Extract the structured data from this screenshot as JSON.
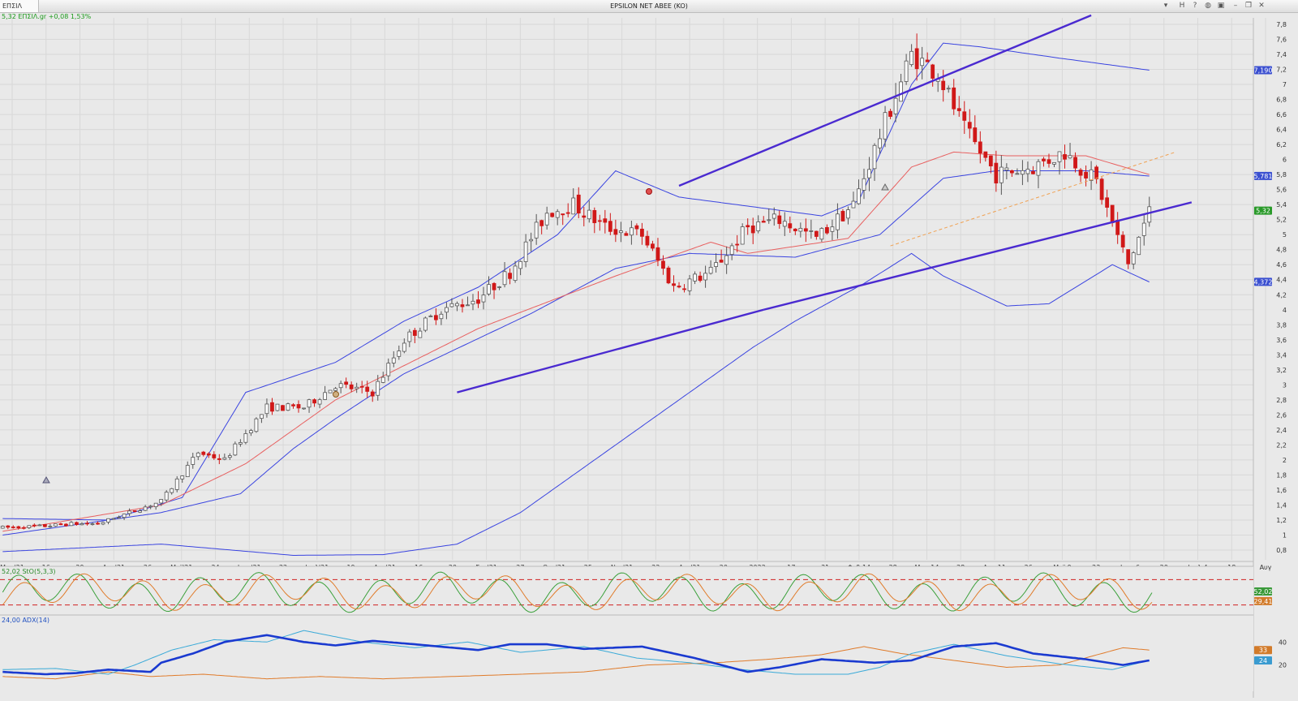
{
  "window": {
    "symbol_tab": "ΕΠΣΙΛ",
    "title": "EPSILON NET ABEE (KO)",
    "btn_h": "H"
  },
  "quote": {
    "text": "5,32 ΕΠΣΙΛ.gr +0,08 1,53%"
  },
  "chart_data": [
    {
      "type": "candlestick",
      "symbol": "ΕΠΣΙΛ",
      "price_range": [
        0.8,
        7.8
      ],
      "price_ticks": [
        "7,8",
        "7,6",
        "7,4",
        "7,2",
        "7",
        "6,8",
        "6,6",
        "6,4",
        "6,2",
        "6",
        "5,8",
        "5,6",
        "5,4",
        "5,2",
        "5",
        "4,8",
        "4,6",
        "4,4",
        "4,2",
        "4",
        "3,8",
        "3,6",
        "3,4",
        "3,2",
        "3",
        "2,8",
        "2,6",
        "2,4",
        "2,2",
        "2",
        "1,8",
        "1,6",
        "1,4",
        "1,2",
        "1",
        "0,8"
      ],
      "x_labels": [
        "Μαρ'21",
        "16",
        "29",
        "Απρ'21",
        "26",
        "Μαϊ'21",
        "24",
        "Ιουν'21",
        "22",
        "Ιουλ'21",
        "19",
        "Αυγ'21",
        "16",
        "30",
        "Σεπ'21",
        "27",
        "Οκτ'21",
        "25",
        "Νοε'21",
        "22",
        "Δεκ'21",
        "20",
        "2022",
        "17",
        "31",
        "Φεβ 14",
        "28",
        "Μαρ 14",
        "28",
        "Απρ 11",
        "26",
        "Μαϊ 9",
        "23",
        "Ιουν 6",
        "20",
        "Ιουλ 4",
        "18",
        "Αυγ"
      ],
      "value_flags": [
        {
          "label": "7,190",
          "color": "#3a4fd0"
        },
        {
          "label": "5,781",
          "color": "#3a4fd0"
        },
        {
          "label": "5,32",
          "color": "#2a9a2a"
        },
        {
          "label": "4,372",
          "color": "#3a4fd0"
        }
      ],
      "price_path": [
        [
          0,
          1.1
        ],
        [
          8,
          1.12
        ],
        [
          13,
          1.15
        ],
        [
          18,
          1.15
        ],
        [
          24,
          1.3
        ],
        [
          30,
          1.45
        ],
        [
          37,
          2.1
        ],
        [
          42,
          2.0
        ],
        [
          50,
          2.7
        ],
        [
          57,
          2.7
        ],
        [
          63,
          3.0
        ],
        [
          70,
          2.9
        ],
        [
          76,
          3.6
        ],
        [
          83,
          4.0
        ],
        [
          90,
          4.15
        ],
        [
          96,
          4.5
        ],
        [
          103,
          5.3
        ],
        [
          108,
          5.4
        ],
        [
          114,
          5.1
        ],
        [
          121,
          5.0
        ],
        [
          127,
          4.3
        ],
        [
          134,
          4.5
        ],
        [
          141,
          5.1
        ],
        [
          147,
          5.2
        ],
        [
          154,
          4.95
        ],
        [
          161,
          5.4
        ],
        [
          167,
          6.5
        ],
        [
          172,
          7.4
        ],
        [
          177,
          7.15
        ],
        [
          182,
          6.4
        ],
        [
          188,
          5.8
        ],
        [
          195,
          5.9
        ],
        [
          201,
          6.1
        ],
        [
          207,
          5.7
        ],
        [
          213,
          4.6
        ],
        [
          217,
          5.32
        ]
      ],
      "bollinger_upper": [
        [
          0,
          1.22
        ],
        [
          20,
          1.2
        ],
        [
          34,
          1.5
        ],
        [
          46,
          2.9
        ],
        [
          63,
          3.3
        ],
        [
          76,
          3.85
        ],
        [
          90,
          4.3
        ],
        [
          105,
          5.0
        ],
        [
          116,
          5.85
        ],
        [
          128,
          5.5
        ],
        [
          141,
          5.38
        ],
        [
          155,
          5.25
        ],
        [
          162,
          5.45
        ],
        [
          172,
          7.0
        ],
        [
          178,
          7.55
        ],
        [
          185,
          7.5
        ],
        [
          200,
          7.35
        ],
        [
          217,
          7.19
        ]
      ],
      "bollinger_middle": [
        [
          0,
          1.0
        ],
        [
          30,
          1.3
        ],
        [
          45,
          1.55
        ],
        [
          55,
          2.15
        ],
        [
          63,
          2.55
        ],
        [
          76,
          3.15
        ],
        [
          100,
          3.95
        ],
        [
          116,
          4.55
        ],
        [
          130,
          4.75
        ],
        [
          150,
          4.7
        ],
        [
          166,
          5.0
        ],
        [
          178,
          5.75
        ],
        [
          188,
          5.85
        ],
        [
          205,
          5.85
        ],
        [
          217,
          5.78
        ]
      ],
      "bollinger_lower": [
        [
          0,
          0.78
        ],
        [
          30,
          0.88
        ],
        [
          55,
          0.73
        ],
        [
          72,
          0.74
        ],
        [
          86,
          0.88
        ],
        [
          98,
          1.3
        ],
        [
          116,
          2.2
        ],
        [
          130,
          2.9
        ],
        [
          142,
          3.5
        ],
        [
          150,
          3.85
        ],
        [
          163,
          4.35
        ],
        [
          172,
          4.75
        ],
        [
          178,
          4.45
        ],
        [
          190,
          4.05
        ],
        [
          198,
          4.08
        ],
        [
          210,
          4.6
        ],
        [
          217,
          4.37
        ]
      ],
      "moving_average": [
        [
          0,
          1.05
        ],
        [
          30,
          1.4
        ],
        [
          46,
          1.95
        ],
        [
          63,
          2.8
        ],
        [
          90,
          3.75
        ],
        [
          116,
          4.45
        ],
        [
          134,
          4.9
        ],
        [
          141,
          4.75
        ],
        [
          160,
          4.95
        ],
        [
          172,
          5.9
        ],
        [
          180,
          6.1
        ],
        [
          190,
          6.05
        ],
        [
          205,
          6.05
        ],
        [
          217,
          5.8
        ]
      ],
      "trendlines": [
        {
          "from": [
            86,
            2.9
          ],
          "to": [
            144,
            4.0
          ]
        },
        {
          "from": [
            144,
            4.0
          ],
          "to": [
            225,
            5.43
          ]
        },
        {
          "from": [
            128,
            5.65
          ],
          "to": [
            206,
            7.92
          ]
        }
      ],
      "dashed_trendline": {
        "from": [
          168,
          4.85
        ],
        "to": [
          222,
          6.1
        ]
      }
    },
    {
      "type": "line",
      "title": "52,02 StO(5,3,3)",
      "levels": [
        80,
        20
      ],
      "value_flags": [
        {
          "label": "52,02",
          "color": "#3a9a3a"
        },
        {
          "label": "29,41",
          "color": "#d27b2a"
        }
      ],
      "series": [
        {
          "color": "#3aa03a"
        },
        {
          "color": "#e07b2a"
        }
      ]
    },
    {
      "type": "line",
      "title": "24,00 ADX(14)",
      "y_ticks": [
        "40",
        "20"
      ],
      "value_flags": [
        {
          "label": "33",
          "color": "#d27b2a"
        },
        {
          "label": "24",
          "color": "#3a9bd0"
        }
      ],
      "adx": [
        [
          0,
          14
        ],
        [
          8,
          12
        ],
        [
          14,
          13
        ],
        [
          20,
          16
        ],
        [
          28,
          14
        ],
        [
          30,
          22
        ],
        [
          36,
          30
        ],
        [
          42,
          40
        ],
        [
          50,
          46
        ],
        [
          57,
          40
        ],
        [
          63,
          37
        ],
        [
          70,
          41
        ],
        [
          78,
          38
        ],
        [
          90,
          33
        ],
        [
          96,
          38
        ],
        [
          103,
          38
        ],
        [
          110,
          34
        ],
        [
          121,
          36
        ],
        [
          131,
          26
        ],
        [
          141,
          14
        ],
        [
          147,
          18
        ],
        [
          155,
          25
        ],
        [
          165,
          22
        ],
        [
          172,
          24
        ],
        [
          180,
          36
        ],
        [
          188,
          39
        ],
        [
          195,
          30
        ],
        [
          205,
          25
        ],
        [
          212,
          20
        ],
        [
          217,
          24
        ]
      ],
      "plus_di": [
        [
          0,
          16
        ],
        [
          10,
          17
        ],
        [
          20,
          12
        ],
        [
          25,
          20
        ],
        [
          32,
          33
        ],
        [
          40,
          42
        ],
        [
          50,
          40
        ],
        [
          57,
          50
        ],
        [
          68,
          40
        ],
        [
          78,
          35
        ],
        [
          88,
          40
        ],
        [
          98,
          31
        ],
        [
          110,
          36
        ],
        [
          120,
          26
        ],
        [
          130,
          22
        ],
        [
          140,
          16
        ],
        [
          150,
          12
        ],
        [
          160,
          12
        ],
        [
          166,
          18
        ],
        [
          172,
          30
        ],
        [
          180,
          38
        ],
        [
          190,
          28
        ],
        [
          200,
          21
        ],
        [
          210,
          16
        ],
        [
          217,
          24
        ]
      ],
      "minus_di": [
        [
          0,
          10
        ],
        [
          10,
          8
        ],
        [
          20,
          14
        ],
        [
          28,
          10
        ],
        [
          38,
          12
        ],
        [
          50,
          8
        ],
        [
          60,
          10
        ],
        [
          72,
          8
        ],
        [
          85,
          10
        ],
        [
          98,
          12
        ],
        [
          110,
          14
        ],
        [
          122,
          20
        ],
        [
          135,
          22
        ],
        [
          145,
          25
        ],
        [
          155,
          29
        ],
        [
          163,
          36
        ],
        [
          170,
          30
        ],
        [
          180,
          24
        ],
        [
          190,
          18
        ],
        [
          200,
          20
        ],
        [
          212,
          35
        ],
        [
          217,
          33
        ]
      ]
    }
  ]
}
